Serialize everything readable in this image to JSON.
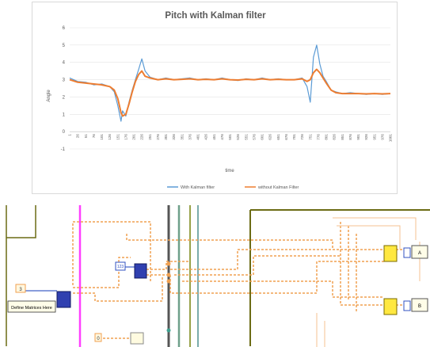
{
  "chart_data": {
    "type": "line",
    "title": "Pitch with Kalman filter",
    "xlabel": "time",
    "ylabel": "Angle",
    "ylim": [
      -1,
      6
    ],
    "yticks": [
      -1,
      0,
      1,
      2,
      3,
      4,
      5,
      6
    ],
    "xlim": [
      1,
      1001
    ],
    "xticks": [
      1,
      26,
      51,
      76,
      101,
      126,
      151,
      176,
      201,
      226,
      251,
      276,
      301,
      326,
      351,
      376,
      401,
      426,
      451,
      476,
      501,
      526,
      551,
      576,
      601,
      626,
      651,
      676,
      701,
      726,
      751,
      776,
      801,
      826,
      851,
      876,
      901,
      926,
      951,
      976,
      1001
    ],
    "grid": "horizontal",
    "legend": "bottom",
    "series": [
      {
        "name": "With Kalman filter",
        "color": "#5b9bd5",
        "x": [
          1,
          26,
          51,
          76,
          101,
          126,
          140,
          151,
          161,
          166,
          176,
          186,
          196,
          206,
          216,
          226,
          236,
          251,
          276,
          301,
          326,
          351,
          376,
          401,
          426,
          451,
          476,
          501,
          526,
          551,
          576,
          601,
          626,
          651,
          676,
          701,
          726,
          741,
          751,
          761,
          771,
          781,
          791,
          801,
          816,
          831,
          851,
          876,
          901,
          926,
          951,
          976,
          1001
        ],
        "values": [
          3.1,
          2.9,
          2.85,
          2.7,
          2.75,
          2.6,
          2.3,
          1.5,
          0.6,
          1.2,
          0.9,
          1.7,
          2.4,
          3.0,
          3.6,
          4.2,
          3.5,
          3.15,
          3.0,
          3.1,
          3.0,
          3.05,
          3.1,
          3.0,
          3.05,
          3.0,
          3.1,
          3.0,
          2.95,
          3.05,
          3.0,
          3.1,
          3.0,
          3.05,
          3.0,
          3.0,
          3.1,
          2.6,
          1.7,
          4.3,
          5.0,
          3.9,
          3.2,
          2.9,
          2.4,
          2.3,
          2.2,
          2.25,
          2.2,
          2.15,
          2.2,
          2.15,
          2.2
        ]
      },
      {
        "name": "without Kalman Filter",
        "color": "#ed7d31",
        "x": [
          1,
          26,
          51,
          76,
          101,
          126,
          140,
          151,
          161,
          166,
          176,
          186,
          196,
          206,
          216,
          226,
          236,
          251,
          276,
          301,
          326,
          351,
          376,
          401,
          426,
          451,
          476,
          501,
          526,
          551,
          576,
          601,
          626,
          651,
          676,
          701,
          726,
          741,
          751,
          761,
          771,
          781,
          791,
          801,
          816,
          831,
          851,
          876,
          901,
          926,
          951,
          976,
          1001
        ],
        "values": [
          3.0,
          2.85,
          2.8,
          2.75,
          2.7,
          2.6,
          2.4,
          1.9,
          1.1,
          0.9,
          1.0,
          1.6,
          2.3,
          2.9,
          3.3,
          3.5,
          3.2,
          3.1,
          3.0,
          3.05,
          3.0,
          3.02,
          3.05,
          3.0,
          3.02,
          3.0,
          3.05,
          3.0,
          2.98,
          3.02,
          3.0,
          3.05,
          3.0,
          3.02,
          3.0,
          3.0,
          3.05,
          2.9,
          3.0,
          3.4,
          3.6,
          3.4,
          3.1,
          2.8,
          2.4,
          2.25,
          2.2,
          2.2,
          2.2,
          2.18,
          2.2,
          2.18,
          2.2
        ]
      }
    ]
  },
  "diagram": {
    "const_label": "3",
    "box_label": "Define Matrices Here",
    "ctrl_label": "123",
    "bottom_const": "0",
    "out_label_top": "A",
    "out_label_bottom": "B"
  }
}
